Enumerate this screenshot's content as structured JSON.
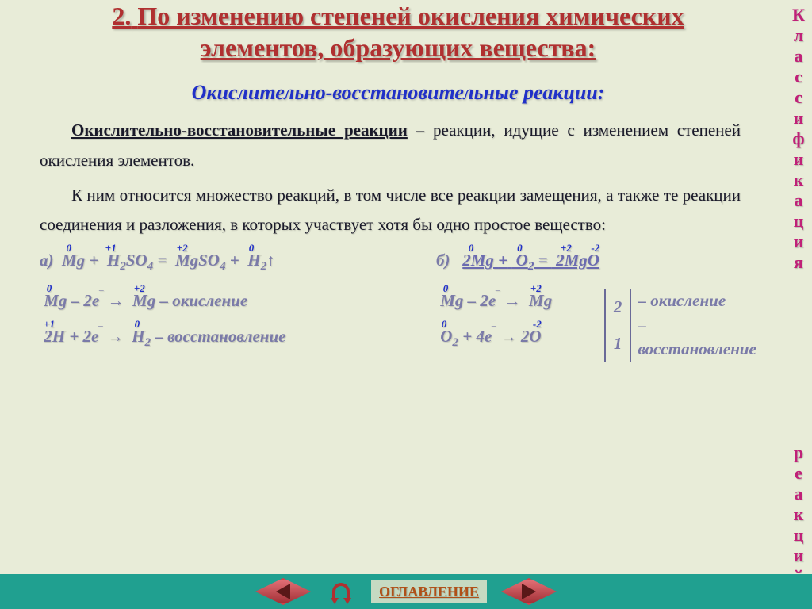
{
  "colors": {
    "slide_bg": "#e8ecd8",
    "title": "#b03030",
    "subtitle": "#2030c8",
    "body": "#1a1a2a",
    "ox_blue": "#2030c8",
    "formula_gray": "#7a7aa8",
    "formula_link": "#6b6bb0",
    "vert_text": "#c02078",
    "bottom_bar": "#20a090",
    "nav_red_bg": "#d84048",
    "nav_tri_dark": "#5a1818",
    "horseshoe": "#b03030",
    "toc_text": "#b05018",
    "half_num_border": "#6a6a98"
  },
  "title": {
    "number": "2.",
    "text": "По изменению степеней окисления химических элементов, образующих вещества:",
    "fontsize": 32
  },
  "subtitle": "Окислительно-восстановительные реакции:",
  "paragraphs": {
    "p1_lead": "Окислительно-восстановительные реакции",
    "p1_rest": " – реакции, идущие с изменением степеней окисления элементов.",
    "p2": "К ним относится множество реакций, в том числе все реакции замещения, а также те реакции соединения и разложения, в которых участвует хотя бы одно простое вещество:"
  },
  "eq_a": {
    "label": "а)",
    "ox": {
      "Mg0": "0",
      "H1": "+1",
      "Mg2": "+2",
      "H0": "0"
    },
    "text_parts": [
      "Mg + H",
      "2",
      "SO",
      "4",
      " = MgSO",
      "4",
      " + H",
      "2",
      "↑"
    ]
  },
  "eq_b": {
    "label": "б)",
    "ox": {
      "Mg0": "0",
      "O0": "0",
      "Mg2": "+2",
      "Om2": "-2"
    },
    "text": "2Mg + O₂ = 2MgO"
  },
  "half_a": {
    "line1": {
      "ox": {
        "Mg0": "0",
        "Mg2": "+2"
      },
      "text_parts": [
        "Mg – 2e",
        "‾",
        " → Mg"
      ],
      "suffix": " – окисление"
    },
    "line2": {
      "ox": {
        "H1": "+1",
        "H0": "0"
      },
      "text_parts": [
        "2H + 2e",
        "‾",
        " → H",
        "2"
      ],
      "suffix": " – восстановление"
    }
  },
  "half_b": {
    "line1": {
      "ox": {
        "Mg0": "0",
        "Mg2": "+2"
      },
      "text_parts": [
        "Mg – 2e",
        "‾",
        " → Mg"
      ],
      "num": "2",
      "suffix": "– окисление"
    },
    "line2": {
      "ox": {
        "O0": "0",
        "Om2": "-2"
      },
      "text_parts": [
        "O",
        "2",
        " + 4e",
        "‾",
        " → 2O"
      ],
      "num": "1",
      "suffix": "– восстановление"
    }
  },
  "vertical_label": {
    "word1": "Классификация",
    "word2": "реакций"
  },
  "nav": {
    "toc": "ОГЛАВЛЕНИЕ"
  }
}
